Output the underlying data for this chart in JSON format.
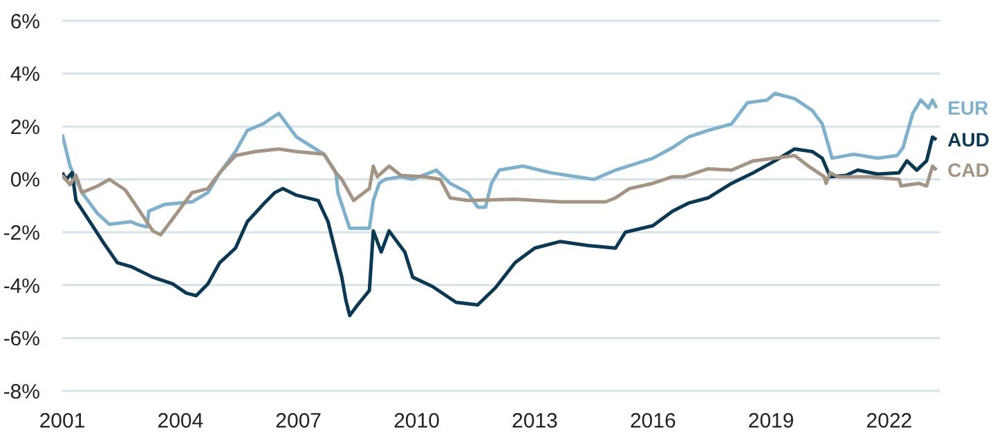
{
  "chart_data": {
    "type": "line",
    "xlim": [
      2001,
      2023.3
    ],
    "xticks": [
      2001,
      2004,
      2007,
      2010,
      2013,
      2016,
      2019,
      2022
    ],
    "ylim": [
      -8,
      6
    ],
    "yticks": [
      {
        "value": -8,
        "label": "-8%"
      },
      {
        "value": -6,
        "label": "-6%"
      },
      {
        "value": -4,
        "label": "-4%"
      },
      {
        "value": -2,
        "label": "-2%"
      },
      {
        "value": 0,
        "label": "0%"
      },
      {
        "value": 2,
        "label": "2%"
      },
      {
        "value": 4,
        "label": "4%"
      },
      {
        "value": 6,
        "label": "6%"
      }
    ],
    "grid": "y",
    "line_style": "solid",
    "marker": "none",
    "series": [
      {
        "name": "EUR",
        "color": "#7fb1cc",
        "x": [
          2001.0,
          2001.2,
          2001.5,
          2001.9,
          2002.2,
          2002.75,
          2002.9,
          2003.15,
          2003.2,
          2003.6,
          2004.3,
          2004.7,
          2005.0,
          2005.4,
          2005.7,
          2006.1,
          2006.5,
          2006.95,
          2007.65,
          2007.95,
          2008.0,
          2008.3,
          2008.8,
          2008.9,
          2009.05,
          2009.2,
          2009.6,
          2009.9,
          2010.5,
          2010.85,
          2011.3,
          2011.55,
          2011.75,
          2011.9,
          2012.1,
          2012.7,
          2013.4,
          2014.5,
          2015.05,
          2016.0,
          2016.5,
          2016.9,
          2017.4,
          2018.0,
          2018.4,
          2018.9,
          2019.1,
          2019.6,
          2020.05,
          2020.3,
          2020.55,
          2021.1,
          2021.7,
          2022.2,
          2022.35,
          2022.6,
          2022.8,
          2023.0,
          2023.1,
          2023.2
        ],
        "values": [
          1.7,
          0.5,
          -0.5,
          -1.3,
          -1.7,
          -1.6,
          -1.7,
          -1.8,
          -1.2,
          -0.95,
          -0.85,
          -0.5,
          0.25,
          1.05,
          1.85,
          2.1,
          2.5,
          1.6,
          0.95,
          0.25,
          -0.5,
          -1.85,
          -1.85,
          -0.8,
          -0.15,
          0,
          0.1,
          0,
          0.35,
          -0.15,
          -0.5,
          -1.05,
          -1.05,
          -0.15,
          0.35,
          0.5,
          0.25,
          0,
          0.35,
          0.8,
          1.2,
          1.6,
          1.85,
          2.1,
          2.9,
          3.0,
          3.25,
          3.05,
          2.6,
          2.1,
          0.8,
          0.95,
          0.8,
          0.9,
          1.2,
          2.5,
          3.0,
          2.7,
          3.0,
          2.7
        ]
      },
      {
        "name": "AUD",
        "color": "#0b3954",
        "x": [
          2001.0,
          2001.1,
          2001.25,
          2001.35,
          2001.7,
          2002.05,
          2002.4,
          2002.75,
          2003.3,
          2003.8,
          2004.15,
          2004.4,
          2004.7,
          2005.0,
          2005.4,
          2005.7,
          2006.1,
          2006.4,
          2006.6,
          2006.95,
          2007.5,
          2007.75,
          2008.1,
          2008.2,
          2008.3,
          2008.5,
          2008.8,
          2008.9,
          2009.1,
          2009.3,
          2009.7,
          2009.9,
          2010.4,
          2011.0,
          2011.55,
          2012.0,
          2012.5,
          2013.0,
          2013.65,
          2014.35,
          2015.05,
          2015.3,
          2016.0,
          2016.5,
          2016.9,
          2017.4,
          2018.0,
          2018.55,
          2019.1,
          2019.6,
          2020.05,
          2020.3,
          2020.5,
          2020.9,
          2021.2,
          2021.7,
          2022.25,
          2022.45,
          2022.7,
          2022.95,
          2023.1,
          2023.2
        ],
        "values": [
          0.25,
          0,
          0.25,
          -0.8,
          -1.6,
          -2.4,
          -3.15,
          -3.3,
          -3.7,
          -3.95,
          -4.3,
          -4.4,
          -3.95,
          -3.15,
          -2.6,
          -1.6,
          -0.95,
          -0.5,
          -0.35,
          -0.6,
          -0.8,
          -1.6,
          -3.7,
          -4.55,
          -5.15,
          -4.75,
          -4.2,
          -1.95,
          -2.75,
          -1.95,
          -2.75,
          -3.7,
          -4.05,
          -4.65,
          -4.75,
          -4.1,
          -3.15,
          -2.6,
          -2.35,
          -2.5,
          -2.6,
          -2.0,
          -1.75,
          -1.2,
          -0.9,
          -0.7,
          -0.15,
          0.25,
          0.7,
          1.15,
          1.05,
          0.8,
          0.1,
          0.15,
          0.35,
          0.2,
          0.25,
          0.7,
          0.35,
          0.7,
          1.6,
          1.5
        ]
      },
      {
        "name": "CAD",
        "color": "#a39483",
        "x": [
          2001.0,
          2001.2,
          2001.35,
          2001.5,
          2001.9,
          2002.2,
          2002.6,
          2002.9,
          2003.3,
          2003.5,
          2003.8,
          2004.3,
          2004.7,
          2005.0,
          2005.4,
          2005.9,
          2006.5,
          2006.95,
          2007.65,
          2007.95,
          2008.1,
          2008.4,
          2008.8,
          2008.9,
          2009.0,
          2009.3,
          2009.6,
          2010.2,
          2010.6,
          2010.85,
          2011.3,
          2012.5,
          2013.65,
          2014.8,
          2015.05,
          2015.4,
          2016.0,
          2016.5,
          2016.8,
          2017.4,
          2018.0,
          2018.55,
          2019.1,
          2019.6,
          2019.95,
          2020.35,
          2020.4,
          2020.5,
          2020.7,
          2021.5,
          2022.25,
          2022.3,
          2022.75,
          2022.95,
          2023.1,
          2023.2
        ],
        "values": [
          0.15,
          -0.2,
          0.15,
          -0.5,
          -0.25,
          0,
          -0.4,
          -1.05,
          -1.95,
          -2.1,
          -1.5,
          -0.5,
          -0.35,
          0.25,
          0.9,
          1.05,
          1.15,
          1.05,
          0.95,
          0.25,
          0,
          -0.8,
          -0.35,
          0.5,
          0.1,
          0.5,
          0.15,
          0.1,
          0,
          -0.7,
          -0.8,
          -0.75,
          -0.85,
          -0.85,
          -0.7,
          -0.35,
          -0.15,
          0.1,
          0.1,
          0.4,
          0.35,
          0.7,
          0.8,
          0.9,
          0.5,
          0.1,
          -0.15,
          0.25,
          0.1,
          0.1,
          0,
          -0.25,
          -0.15,
          -0.25,
          0.5,
          0.35
        ]
      }
    ]
  }
}
